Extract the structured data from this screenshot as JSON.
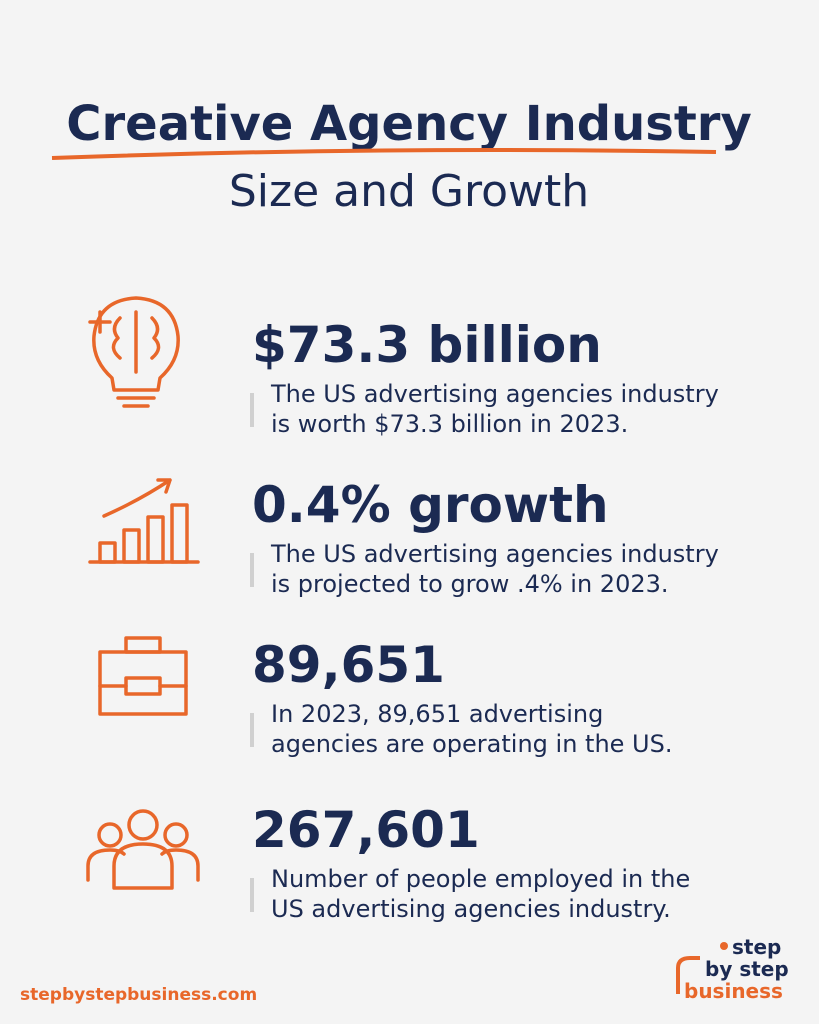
{
  "header": {
    "title": "Creative Agency Industry",
    "subtitle": "Size and Growth"
  },
  "stats": [
    {
      "headline": "$73.3 billion",
      "lines": [
        "The US advertising agencies industry",
        "is worth $73.3 billion in 2023."
      ]
    },
    {
      "headline": "0.4% growth",
      "lines": [
        "The US advertising agencies industry",
        "is projected to grow .4% in 2023."
      ]
    },
    {
      "headline": "89,651",
      "lines": [
        "In 2023, 89,651 advertising",
        "agencies are operating in the US."
      ]
    },
    {
      "headline": "267,601",
      "lines": [
        "Number of people employed in the",
        "US advertising agencies industry."
      ]
    }
  ],
  "footer": {
    "url": "stepbystepbusiness.com",
    "logo": [
      "step",
      "by step",
      "business"
    ]
  }
}
